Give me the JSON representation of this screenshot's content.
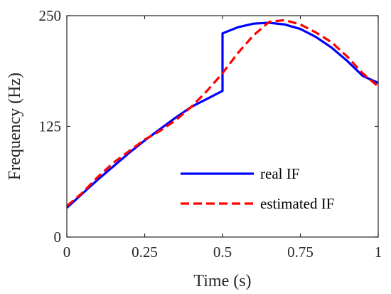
{
  "chart_data": {
    "type": "line",
    "xlabel": "Time (s)",
    "ylabel": "Frequency (Hz)",
    "xlim": [
      0,
      1
    ],
    "ylim": [
      0,
      250
    ],
    "xticks": [
      0,
      0.25,
      0.5,
      0.75,
      1
    ],
    "xtick_labels": [
      "0",
      "0.25",
      "0.5",
      "0.75",
      "1"
    ],
    "yticks": [
      0,
      125,
      250
    ],
    "ytick_labels": [
      "0",
      "125",
      "250"
    ],
    "grid": false,
    "legend_position": "bottom-right",
    "series": [
      {
        "name": "real IF",
        "color": "#0000ff",
        "style": "solid",
        "x": [
          0,
          0.05,
          0.1,
          0.15,
          0.2,
          0.25,
          0.3,
          0.35,
          0.4,
          0.45,
          0.5,
          0.5,
          0.55,
          0.6,
          0.65,
          0.7,
          0.75,
          0.8,
          0.85,
          0.9,
          0.95,
          1.0
        ],
        "y": [
          33,
          49,
          65,
          80,
          95,
          109,
          122,
          135,
          147,
          156,
          165,
          230,
          237,
          241,
          242,
          240,
          235,
          226,
          214,
          199,
          182,
          174
        ]
      },
      {
        "name": "estimated IF",
        "color": "#ff0000",
        "style": "dashed",
        "x": [
          0,
          0.05,
          0.1,
          0.15,
          0.2,
          0.25,
          0.3,
          0.35,
          0.4,
          0.45,
          0.5,
          0.55,
          0.6,
          0.65,
          0.7,
          0.75,
          0.8,
          0.85,
          0.9,
          0.95,
          1.0
        ],
        "y": [
          35,
          50,
          68,
          84,
          97,
          110,
          120,
          132,
          147,
          165,
          185,
          208,
          228,
          243,
          245,
          240,
          231,
          220,
          204,
          185,
          170
        ]
      }
    ]
  }
}
